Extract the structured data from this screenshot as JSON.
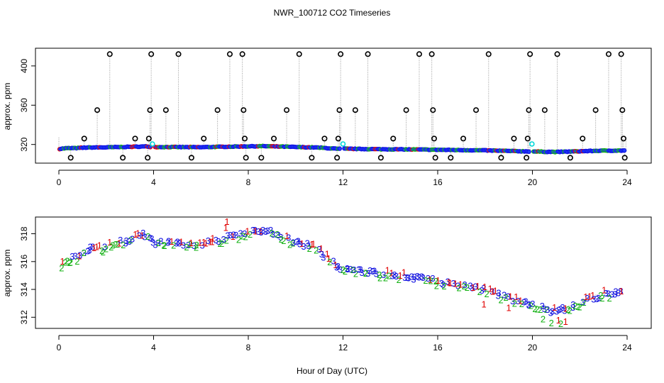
{
  "chart_data": {
    "title": "NWR_100712  CO2 Timeseries",
    "xlabel": "Hour of Day (UTC)",
    "colors": {
      "outlier": "#000000",
      "flagged": "#00d8d8",
      "line": "#9a9a9a",
      "code1": "#e00000",
      "code2": "#10b010",
      "code3": "#1010e0",
      "marker_fill": "#2040ff"
    },
    "panels": [
      {
        "name": "full-range",
        "type": "scatter",
        "ylabel": "approx. ppm",
        "xlim": [
          0,
          24
        ],
        "ylim": [
          301,
          418
        ],
        "xticks": [
          0,
          4,
          8,
          12,
          16,
          20,
          24
        ],
        "yticks": [
          320,
          360,
          400
        ],
        "xtick_labels": [
          "0",
          "4",
          "8",
          "12",
          "16",
          "20",
          "24"
        ],
        "ytick_labels": [
          "320",
          "360",
          "400"
        ],
        "outlier_points": [
          [
            0.5,
            306.5
          ],
          [
            1.07,
            326
          ],
          [
            1.62,
            355
          ],
          [
            2.15,
            412
          ],
          [
            2.7,
            306.5
          ],
          [
            3.22,
            326
          ],
          [
            3.75,
            306.5
          ],
          [
            3.8,
            326
          ],
          [
            3.85,
            355
          ],
          [
            3.9,
            412
          ],
          [
            4.52,
            355
          ],
          [
            5.05,
            412
          ],
          [
            5.6,
            306.5
          ],
          [
            6.12,
            326
          ],
          [
            6.7,
            355
          ],
          [
            7.22,
            412
          ],
          [
            7.75,
            412
          ],
          [
            7.8,
            355
          ],
          [
            7.85,
            326
          ],
          [
            7.9,
            306.5
          ],
          [
            8.55,
            306.5
          ],
          [
            9.08,
            326
          ],
          [
            9.62,
            355
          ],
          [
            10.15,
            412
          ],
          [
            10.68,
            306.5
          ],
          [
            11.22,
            326
          ],
          [
            11.75,
            306.5
          ],
          [
            11.8,
            326
          ],
          [
            11.85,
            355
          ],
          [
            11.9,
            412
          ],
          [
            12.52,
            355
          ],
          [
            13.05,
            412
          ],
          [
            13.6,
            306.5
          ],
          [
            14.12,
            326
          ],
          [
            14.67,
            355
          ],
          [
            15.22,
            412
          ],
          [
            15.75,
            412
          ],
          [
            15.8,
            355
          ],
          [
            15.85,
            326
          ],
          [
            15.9,
            306.5
          ],
          [
            16.55,
            306.5
          ],
          [
            17.08,
            326
          ],
          [
            17.62,
            355
          ],
          [
            18.15,
            412
          ],
          [
            18.68,
            306.5
          ],
          [
            19.22,
            326
          ],
          [
            19.75,
            306.5
          ],
          [
            19.8,
            326
          ],
          [
            19.85,
            355
          ],
          [
            19.9,
            412
          ],
          [
            20.52,
            355
          ],
          [
            21.05,
            412
          ],
          [
            21.6,
            306.5
          ],
          [
            22.12,
            326
          ],
          [
            22.67,
            355
          ],
          [
            23.22,
            412
          ],
          [
            23.75,
            412
          ],
          [
            23.8,
            355
          ],
          [
            23.85,
            326
          ],
          [
            23.9,
            306.5
          ]
        ],
        "flagged_points": [
          [
            3.95,
            320.5
          ],
          [
            12.0,
            320.5
          ],
          [
            19.98,
            320.5
          ]
        ]
      },
      {
        "name": "zoomed",
        "type": "scatter",
        "ylabel": "approx. ppm",
        "xlim": [
          0,
          24
        ],
        "ylim": [
          311.2,
          319.2
        ],
        "xticks": [
          0,
          4,
          8,
          12,
          16,
          20,
          24
        ],
        "yticks": [
          312,
          314,
          316,
          318
        ],
        "xtick_labels": [
          "0",
          "4",
          "8",
          "12",
          "16",
          "20",
          "24"
        ],
        "ytick_labels": [
          "312",
          "314",
          "316",
          "318"
        ],
        "legend_codes": [
          "1",
          "2",
          "3"
        ],
        "series_knots": [
          [
            0.0,
            315.4
          ],
          [
            0.3,
            316.2
          ],
          [
            0.7,
            316.3
          ],
          [
            1.2,
            316.9
          ],
          [
            2.0,
            317.1
          ],
          [
            3.0,
            317.6
          ],
          [
            3.7,
            318.0
          ],
          [
            3.95,
            317.4
          ],
          [
            4.6,
            317.4
          ],
          [
            5.5,
            317.3
          ],
          [
            6.0,
            317.2
          ],
          [
            6.5,
            317.5
          ],
          [
            7.5,
            317.9
          ],
          [
            8.0,
            318.1
          ],
          [
            8.6,
            318.3
          ],
          [
            9.5,
            317.8
          ],
          [
            10.0,
            317.4
          ],
          [
            10.8,
            317.0
          ],
          [
            11.2,
            316.5
          ],
          [
            11.8,
            315.5
          ],
          [
            12.0,
            315.7
          ],
          [
            13.0,
            315.3
          ],
          [
            14.0,
            315.1
          ],
          [
            15.0,
            314.9
          ],
          [
            16.0,
            314.6
          ],
          [
            17.0,
            314.3
          ],
          [
            18.0,
            314.0
          ],
          [
            19.0,
            313.4
          ],
          [
            19.9,
            312.9
          ],
          [
            20.0,
            312.9
          ],
          [
            20.5,
            312.6
          ],
          [
            21.0,
            312.4
          ],
          [
            21.6,
            312.8
          ],
          [
            22.5,
            313.4
          ],
          [
            23.0,
            313.7
          ],
          [
            23.8,
            313.8
          ]
        ]
      }
    ]
  }
}
